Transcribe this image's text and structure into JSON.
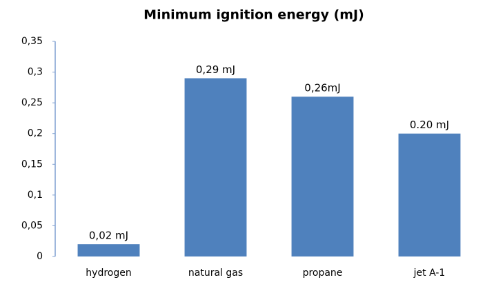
{
  "chart_data": {
    "type": "bar",
    "title": "Minimum ignition energy (mJ)",
    "categories": [
      "hydrogen",
      "natural gas",
      "propane",
      "jet A-1"
    ],
    "values": [
      0.02,
      0.29,
      0.26,
      0.2
    ],
    "value_labels": [
      "0,02 mJ",
      "0,29 mJ",
      "0,26mJ",
      "0.20 mJ"
    ],
    "color": "#4f81bd",
    "ylim": [
      0,
      0.35
    ],
    "yticks": [
      0,
      {
        "value": 0.05,
        "label": "0,05"
      },
      {
        "value": 0.1,
        "label": "0,1"
      },
      {
        "value": 0.15,
        "label": "0,15"
      },
      {
        "value": 0.2,
        "label": "0,2"
      },
      {
        "value": 0.25,
        "label": "0,25"
      },
      {
        "value": 0.3,
        "label": "0,3"
      },
      {
        "value": 0.35,
        "label": "0,35"
      }
    ],
    "grid": false
  }
}
